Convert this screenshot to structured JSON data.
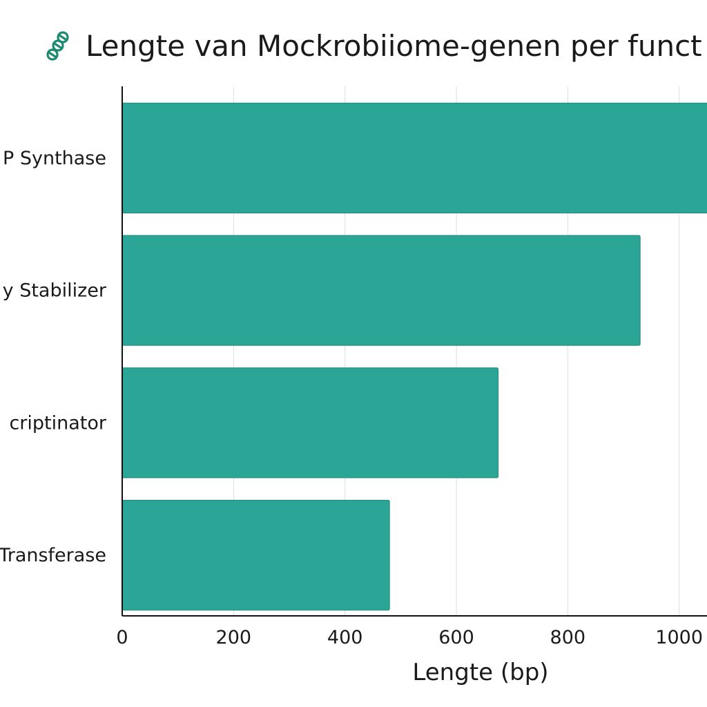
{
  "colors": {
    "bar": "#2ba596",
    "bar_stroke": "#1f8a7c",
    "grid": "#dddddd",
    "axis": "#111111",
    "icon": "#1b8a70"
  },
  "icon": "dna-helix-icon",
  "chart_data": {
    "type": "bar",
    "orientation": "horizontal",
    "title": "Lengte van Mockrobiiome-genen per funct",
    "xlabel": "Lengte (bp)",
    "ylabel": "",
    "categories": [
      "P Synthase",
      "y Stabilizer",
      "criptinator",
      "Transferase"
    ],
    "values": [
      1060,
      930,
      675,
      480
    ],
    "xlim": [
      0,
      1050
    ],
    "xticks": [
      0,
      200,
      400,
      600,
      800,
      1000
    ],
    "xtick_labels": [
      "0",
      "200",
      "400",
      "600",
      "800",
      "1000"
    ],
    "grid": "vertical",
    "legend": "none"
  }
}
